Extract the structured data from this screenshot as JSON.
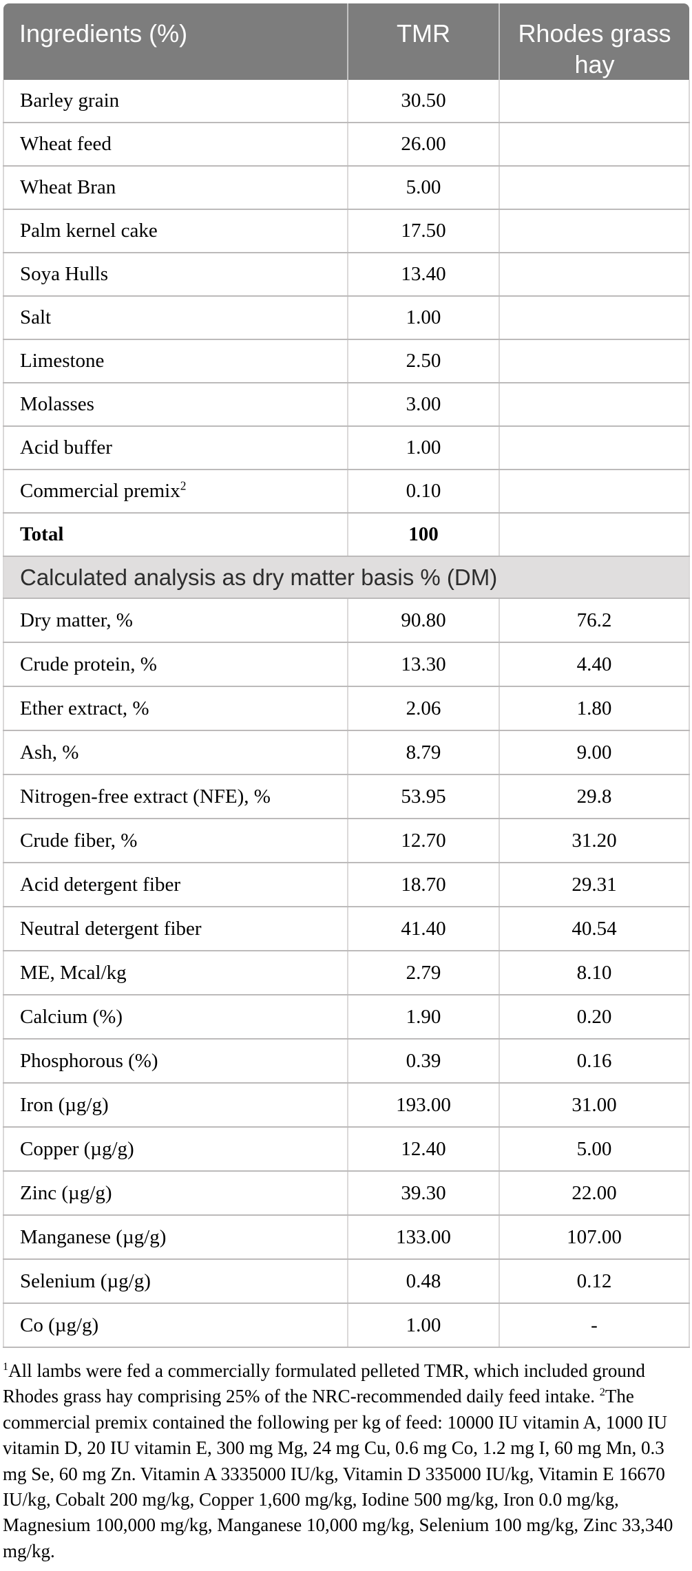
{
  "colors": {
    "header_bg": "#7d7d7d",
    "header_text": "#ffffff",
    "section_bg": "#e0dede",
    "section_text": "#2d2d2d",
    "border_h": "#bcbaba",
    "border_v": "#dad8d8"
  },
  "table": {
    "header": {
      "col1": "Ingredients (%)",
      "col2": "TMR",
      "col3": "Rhodes grass hay"
    },
    "ingredients": [
      {
        "label": "Barley grain",
        "tmr": "30.50",
        "rhodes": ""
      },
      {
        "label": "Wheat feed",
        "tmr": "26.00",
        "rhodes": ""
      },
      {
        "label": "Wheat Bran",
        "tmr": "5.00",
        "rhodes": ""
      },
      {
        "label": "Palm kernel cake",
        "tmr": "17.50",
        "rhodes": ""
      },
      {
        "label": "Soya Hulls",
        "tmr": "13.40",
        "rhodes": ""
      },
      {
        "label": "Salt",
        "tmr": "1.00",
        "rhodes": ""
      },
      {
        "label": "Limestone",
        "tmr": "2.50",
        "rhodes": ""
      },
      {
        "label": "Molasses",
        "tmr": "3.00",
        "rhodes": ""
      },
      {
        "label": "Acid buffer",
        "tmr": "1.00",
        "rhodes": ""
      },
      {
        "label": "Commercial premix",
        "sup": "2",
        "tmr": "0.10",
        "rhodes": ""
      },
      {
        "label": "Total",
        "tmr": "100",
        "rhodes": "",
        "bold": true
      }
    ],
    "section_title": "Calculated analysis as dry matter basis % (DM)",
    "analysis": [
      {
        "label": "Dry matter, %",
        "tmr": "90.80",
        "rhodes": "76.2"
      },
      {
        "label": "Crude protein, %",
        "tmr": "13.30",
        "rhodes": "4.40"
      },
      {
        "label": "Ether extract, %",
        "tmr": "2.06",
        "rhodes": "1.80"
      },
      {
        "label": "Ash, %",
        "tmr": "8.79",
        "rhodes": "9.00"
      },
      {
        "label": "Nitrogen-free extract (NFE), %",
        "tmr": "53.95",
        "rhodes": "29.8"
      },
      {
        "label": "Crude fiber, %",
        "tmr": "12.70",
        "rhodes": "31.20"
      },
      {
        "label": "Acid detergent fiber",
        "tmr": "18.70",
        "rhodes": "29.31"
      },
      {
        "label": "Neutral detergent fiber",
        "tmr": "41.40",
        "rhodes": "40.54"
      },
      {
        "label": "ME, Mcal/kg",
        "tmr": "2.79",
        "rhodes": "8.10"
      },
      {
        "label": "Calcium (%)",
        "tmr": "1.90",
        "rhodes": "0.20"
      },
      {
        "label": "Phosphorous (%)",
        "tmr": "0.39",
        "rhodes": "0.16"
      },
      {
        "label": "Iron (µg/g)",
        "tmr": "193.00",
        "rhodes": "31.00"
      },
      {
        "label": "Copper (µg/g)",
        "tmr": "12.40",
        "rhodes": "5.00"
      },
      {
        "label": "Zinc (µg/g)",
        "tmr": "39.30",
        "rhodes": "22.00"
      },
      {
        "label": "Manganese (µg/g)",
        "tmr": "133.00",
        "rhodes": "107.00"
      },
      {
        "label": "Selenium (µg/g)",
        "tmr": "0.48",
        "rhodes": "0.12"
      },
      {
        "label": "Co (µg/g)",
        "tmr": "1.00",
        "rhodes": "-"
      }
    ]
  },
  "footnotes": [
    {
      "sup": "1",
      "text": "All lambs were fed a commercially formulated pelleted TMR, which included ground Rhodes grass hay comprising 25% of the NRC-recommended daily feed intake. "
    },
    {
      "sup": "2",
      "text": "The commercial premix contained the following per kg of feed: 10000 IU vitamin A, 1000 IU vitamin D, 20 IU vitamin E, 300 mg Mg, 24 mg Cu, 0.6 mg Co, 1.2 mg I, 60 mg Mn, 0.3 mg Se, 60 mg Zn. Vitamin A 3335000 IU/kg, Vitamin D 335000 IU/kg, Vitamin E 16670 IU/kg, Cobalt 200 mg/kg, Copper 1,600 mg/kg, Iodine 500 mg/kg, Iron 0.0 mg/kg, Magnesium 100,000 mg/kg, Manganese 10,000 mg/kg, Selenium 100 mg/kg, Zinc 33,340 mg/kg."
    }
  ]
}
